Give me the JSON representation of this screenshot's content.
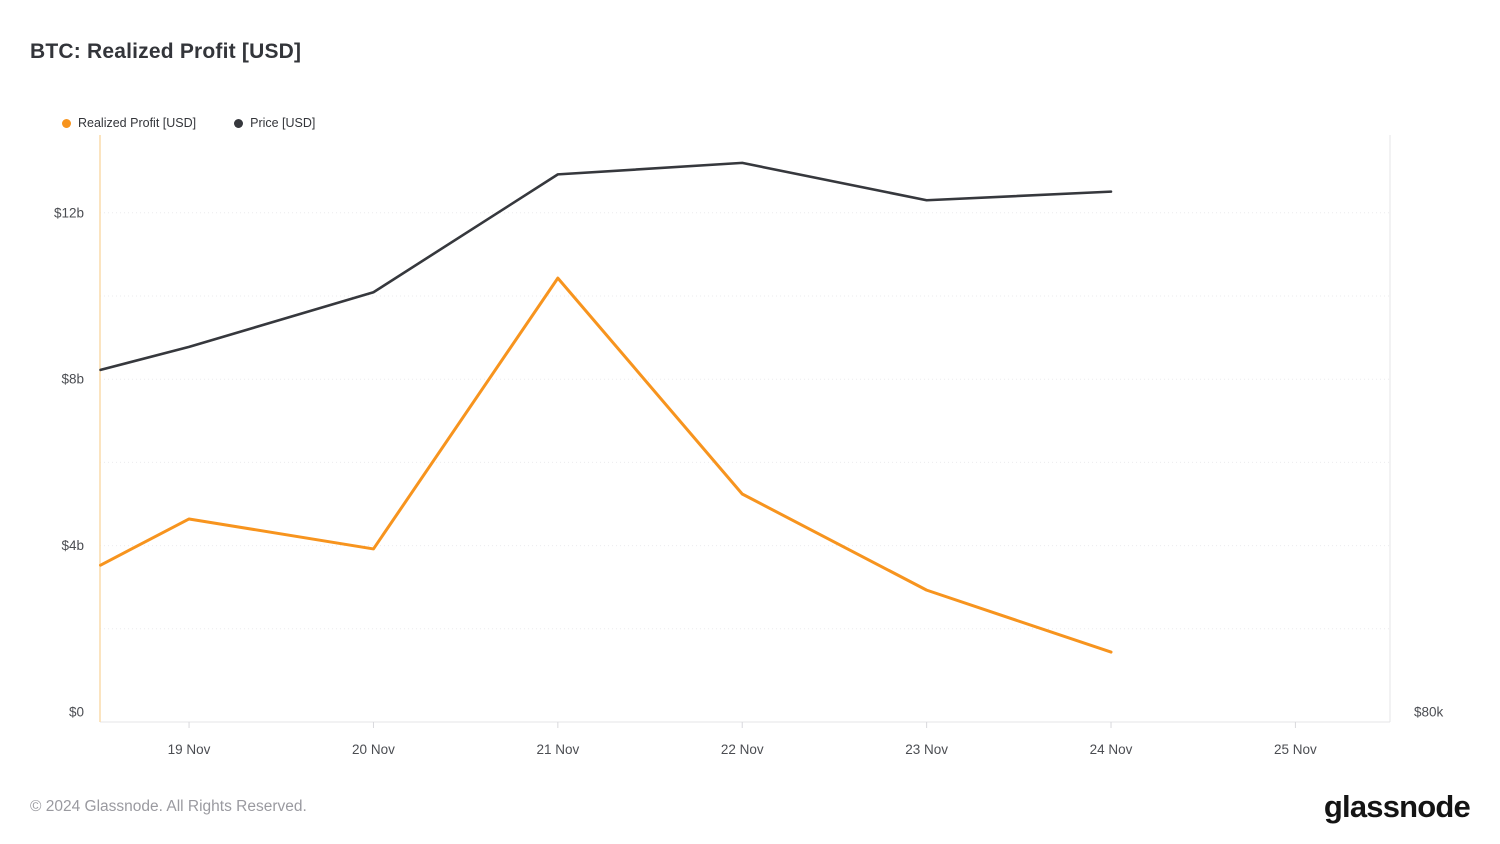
{
  "header": {
    "title": "BTC: Realized Profit [USD]"
  },
  "legend": {
    "items": [
      {
        "label": "Realized Profit [USD]",
        "color": "#f7941e"
      },
      {
        "label": "Price [USD]",
        "color": "#36383d"
      }
    ]
  },
  "footer": {
    "copyright": "© 2024 Glassnode. All Rights Reserved.",
    "logo": "glassnode"
  },
  "chart_data": {
    "type": "line",
    "title": "BTC: Realized Profit [USD]",
    "legend_position": "top-left",
    "grid": "horizontal dotted",
    "x_unit": "date (Nov 2024)",
    "x_tick_values": [
      19,
      20,
      21,
      22,
      23,
      24,
      25
    ],
    "x_tick_labels": [
      "19 Nov",
      "20 Nov",
      "21 Nov",
      "22 Nov",
      "23 Nov",
      "24 Nov",
      "25 Nov"
    ],
    "xlim": [
      18.517,
      25.513
    ],
    "left_axis": {
      "label": "Realized Profit [USD]",
      "lim": [
        0,
        13.87
      ],
      "tick_values": [
        0,
        4,
        8,
        12
      ],
      "tick_labels": [
        "$0",
        "$4b",
        "$8b",
        "$12b"
      ],
      "gridline_step": 2
    },
    "right_axis": {
      "label": "Price [USD]",
      "lim": [
        80,
        100.07
      ],
      "tick_values": [
        80
      ],
      "tick_labels": [
        "$80k"
      ]
    },
    "series": [
      {
        "name": "Realized Profit [USD]",
        "axis": "left",
        "color": "#f7941e",
        "unit": "USD billions",
        "x": [
          18.52,
          19,
          20,
          21,
          22,
          23,
          24
        ],
        "values": [
          3.53,
          4.64,
          3.92,
          10.43,
          5.24,
          2.93,
          1.44
        ]
      },
      {
        "name": "Price [USD]",
        "axis": "right",
        "color": "#36383d",
        "unit": "USD thousands",
        "x": [
          18.52,
          19,
          20,
          21,
          22,
          23,
          24
        ],
        "values": [
          91.9,
          92.7,
          94.6,
          98.7,
          99.1,
          97.8,
          98.1
        ]
      }
    ]
  }
}
